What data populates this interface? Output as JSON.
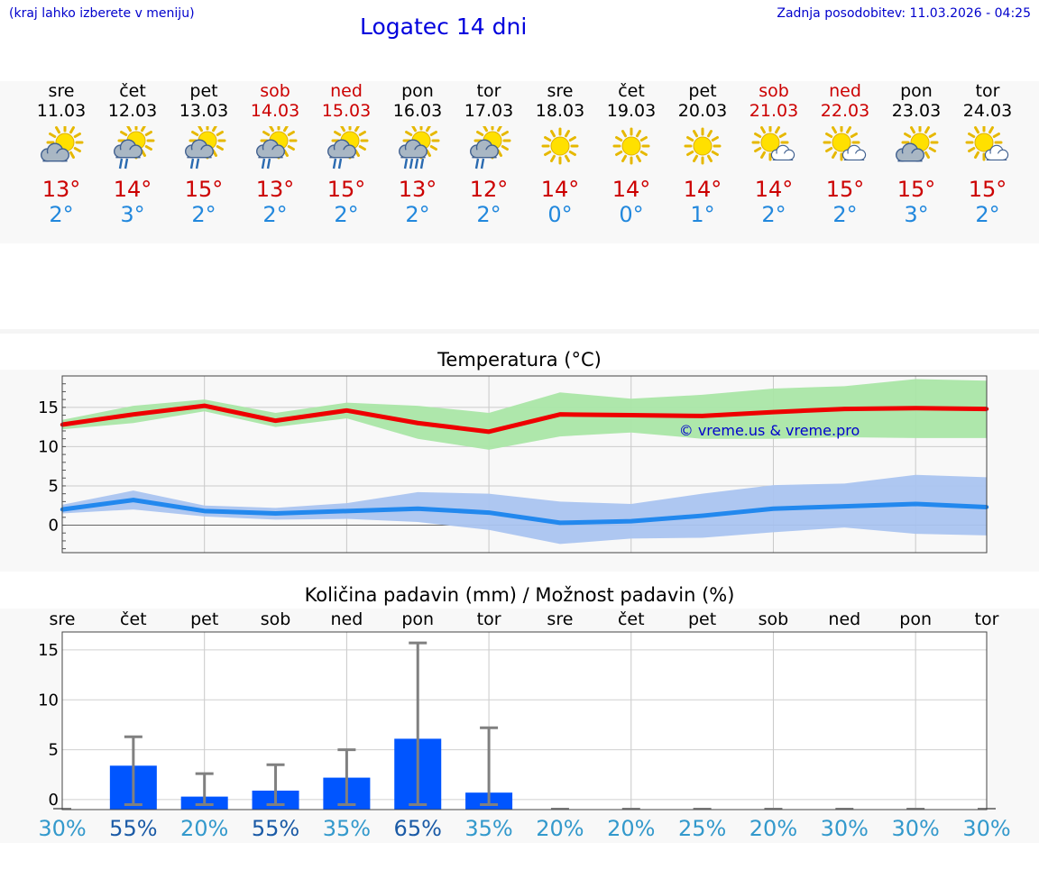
{
  "header": {
    "hint": "(kraj lahko izberete v meniju)",
    "title": "Logatec 14 dni",
    "updated": "Zadnja posodobitev: 11.03.2026 - 04:25"
  },
  "colors": {
    "max_line": "#ee0000",
    "max_band": "#aae6a6",
    "min_line": "#2288ee",
    "min_band": "#aac4f0",
    "bar": "#0055ff",
    "errbar": "#808080",
    "pct_high": "#1a5aa6",
    "pct_low": "#3399cc",
    "weekend": "#cc0000"
  },
  "days": [
    {
      "name": "sre",
      "date": "11.03",
      "max": "13°",
      "min": "2°",
      "icon": "partly-cloudy-icon",
      "weekend": false
    },
    {
      "name": "čet",
      "date": "12.03",
      "max": "14°",
      "min": "3°",
      "icon": "sun-cloud-rain-icon",
      "weekend": false
    },
    {
      "name": "pet",
      "date": "13.03",
      "max": "15°",
      "min": "2°",
      "icon": "sun-cloud-rain-icon",
      "weekend": false
    },
    {
      "name": "sob",
      "date": "14.03",
      "max": "13°",
      "min": "2°",
      "icon": "sun-cloud-rain-icon",
      "weekend": true
    },
    {
      "name": "ned",
      "date": "15.03",
      "max": "15°",
      "min": "2°",
      "icon": "sun-cloud-rain-icon",
      "weekend": true
    },
    {
      "name": "pon",
      "date": "16.03",
      "max": "13°",
      "min": "2°",
      "icon": "sun-cloud-rain-icon",
      "weekend": false
    },
    {
      "name": "tor",
      "date": "17.03",
      "max": "12°",
      "min": "2°",
      "icon": "sun-cloud-rain-icon",
      "weekend": false
    },
    {
      "name": "sre",
      "date": "18.03",
      "max": "14°",
      "min": "0°",
      "icon": "sun-icon",
      "weekend": false
    },
    {
      "name": "čet",
      "date": "19.03",
      "max": "14°",
      "min": "0°",
      "icon": "sun-icon",
      "weekend": false
    },
    {
      "name": "pet",
      "date": "20.03",
      "max": "14°",
      "min": "1°",
      "icon": "sun-icon",
      "weekend": false
    },
    {
      "name": "sob",
      "date": "21.03",
      "max": "14°",
      "min": "2°",
      "icon": "sun-small-cloud-icon",
      "weekend": true
    },
    {
      "name": "ned",
      "date": "22.03",
      "max": "15°",
      "min": "2°",
      "icon": "sun-small-cloud-icon",
      "weekend": true
    },
    {
      "name": "pon",
      "date": "23.03",
      "max": "15°",
      "min": "3°",
      "icon": "partly-cloudy-icon",
      "weekend": false
    },
    {
      "name": "tor",
      "date": "24.03",
      "max": "15°",
      "min": "2°",
      "icon": "sun-small-cloud-icon",
      "weekend": false
    }
  ],
  "chart_data": [
    {
      "type": "line",
      "title": "Temperatura (°C)",
      "copyright": "© vreme.us & vreme.pro",
      "ylim": [
        -3.5,
        19
      ],
      "yticks": [
        0,
        5,
        10,
        15
      ],
      "grid": true,
      "x": [
        0,
        1,
        2,
        3,
        4,
        5,
        6,
        7,
        8,
        9,
        10,
        11,
        12,
        13
      ],
      "series": [
        {
          "name": "max",
          "values": [
            12.8,
            14.1,
            15.2,
            13.3,
            14.6,
            13.0,
            11.9,
            14.1,
            14.0,
            13.9,
            14.4,
            14.8,
            14.9,
            14.8
          ],
          "band_low": [
            12.2,
            13.0,
            14.5,
            12.5,
            13.6,
            11.0,
            9.6,
            11.3,
            11.8,
            11.0,
            11.0,
            11.2,
            11.1,
            11.1
          ],
          "band_high": [
            13.4,
            15.2,
            16.0,
            14.3,
            15.6,
            15.2,
            14.3,
            16.9,
            16.1,
            16.6,
            17.4,
            17.7,
            18.6,
            18.4
          ]
        },
        {
          "name": "min",
          "values": [
            2.0,
            3.2,
            1.8,
            1.5,
            1.8,
            2.1,
            1.6,
            0.3,
            0.5,
            1.2,
            2.1,
            2.4,
            2.7,
            2.3
          ],
          "band_low": [
            1.5,
            2.0,
            1.1,
            0.7,
            0.8,
            0.4,
            -0.6,
            -2.4,
            -1.7,
            -1.6,
            -0.9,
            -0.3,
            -1.1,
            -1.3
          ],
          "band_high": [
            2.6,
            4.4,
            2.5,
            2.2,
            2.8,
            4.2,
            4.0,
            3.0,
            2.7,
            4.0,
            5.1,
            5.3,
            6.4,
            6.1
          ]
        }
      ]
    },
    {
      "type": "bar",
      "title": "Količina padavin (mm) / Možnost padavin (%)",
      "ylim": [
        -1,
        16.8
      ],
      "yticks": [
        0,
        5,
        10,
        15
      ],
      "grid": true,
      "categories": [
        "sre",
        "čet",
        "pet",
        "sob",
        "ned",
        "pon",
        "tor",
        "sre",
        "čet",
        "pet",
        "sob",
        "ned",
        "pon",
        "tor"
      ],
      "values": [
        0,
        3.4,
        0.3,
        0.9,
        2.2,
        6.1,
        0.7,
        0,
        0,
        0,
        0,
        0,
        0,
        0
      ],
      "err_high": [
        0,
        6.3,
        2.6,
        3.5,
        5.0,
        15.7,
        7.2,
        0,
        0,
        0,
        0,
        0,
        0,
        0
      ],
      "probability": [
        "30%",
        "55%",
        "20%",
        "55%",
        "35%",
        "65%",
        "35%",
        "20%",
        "20%",
        "25%",
        "20%",
        "30%",
        "30%",
        "30%"
      ]
    }
  ]
}
